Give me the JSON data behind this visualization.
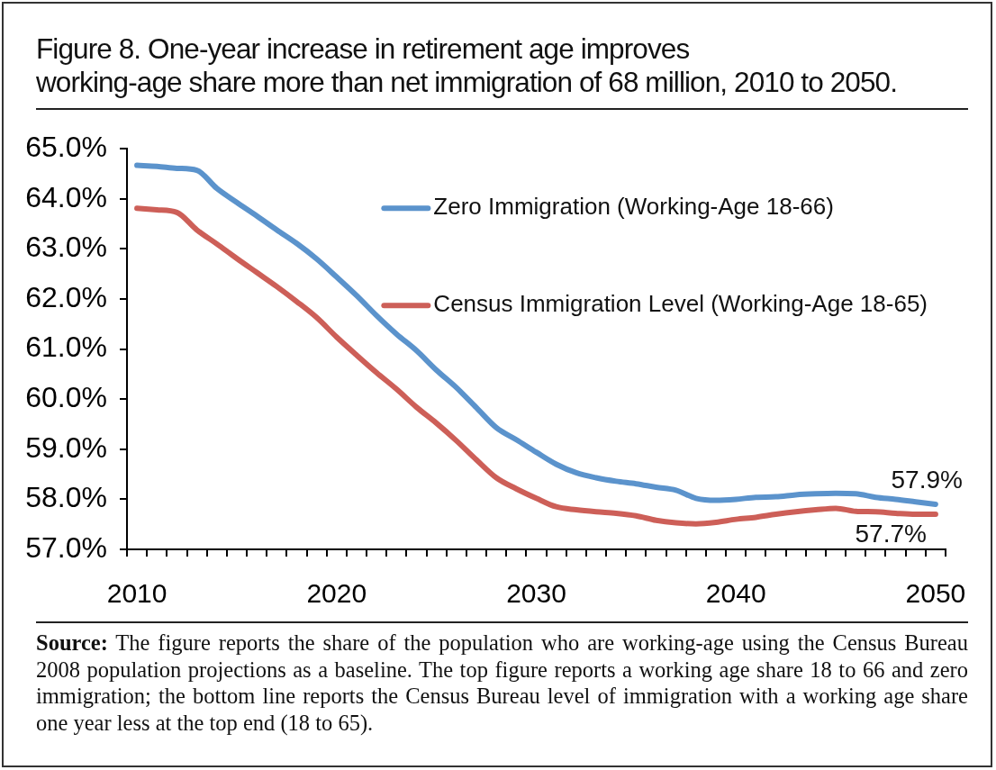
{
  "chart_data": {
    "type": "line",
    "title": "Figure 8. One-year increase in retirement age improves\nworking-age share more than net immigration of 68 million, 2010 to 2050.",
    "categories": [
      "2010",
      null,
      null,
      null,
      null,
      null,
      null,
      null,
      null,
      null,
      "2020",
      null,
      null,
      null,
      null,
      null,
      null,
      null,
      null,
      null,
      "2030",
      null,
      null,
      null,
      null,
      null,
      null,
      null,
      null,
      null,
      "2040",
      null,
      null,
      null,
      null,
      null,
      null,
      null,
      null,
      null,
      "2050"
    ],
    "series": [
      {
        "name": "Zero Immigration (Working-Age 18-66)",
        "color": "#5b93cc",
        "values": [
          64.67,
          64.65,
          64.61,
          64.57,
          64.21,
          63.93,
          63.66,
          63.38,
          63.11,
          62.8,
          62.44,
          62.07,
          61.67,
          61.3,
          60.97,
          60.58,
          60.23,
          59.83,
          59.43,
          59.19,
          58.94,
          58.7,
          58.53,
          58.43,
          58.36,
          58.31,
          58.24,
          58.18,
          58.02,
          57.98,
          58.0,
          58.04,
          58.05,
          58.09,
          58.11,
          58.12,
          58.11,
          58.04,
          58.0,
          57.95,
          57.9
        ],
        "value_labels": [
          null,
          null,
          null,
          null,
          null,
          null,
          null,
          null,
          null,
          null,
          null,
          null,
          null,
          null,
          null,
          null,
          null,
          null,
          null,
          null,
          null,
          null,
          null,
          null,
          null,
          null,
          null,
          null,
          null,
          null,
          null,
          null,
          null,
          null,
          null,
          null,
          null,
          null,
          null,
          null,
          "57.9%"
        ]
      },
      {
        "name": "Census Immigration Level (Working-Age 18-65)",
        "color": "#cd5f58",
        "values": [
          63.81,
          63.78,
          63.73,
          63.38,
          63.1,
          62.81,
          62.53,
          62.25,
          61.95,
          61.63,
          61.24,
          60.88,
          60.53,
          60.2,
          59.84,
          59.52,
          59.17,
          58.79,
          58.43,
          58.21,
          58.02,
          57.85,
          57.79,
          57.75,
          57.72,
          57.67,
          57.58,
          57.53,
          57.51,
          57.54,
          57.6,
          57.64,
          57.7,
          57.75,
          57.79,
          57.82,
          57.76,
          57.75,
          57.72,
          57.7,
          57.7
        ],
        "value_labels": [
          null,
          null,
          null,
          null,
          null,
          null,
          null,
          null,
          null,
          null,
          null,
          null,
          null,
          null,
          null,
          null,
          null,
          null,
          null,
          null,
          null,
          null,
          null,
          null,
          null,
          null,
          null,
          null,
          null,
          null,
          null,
          null,
          null,
          null,
          null,
          null,
          null,
          null,
          null,
          null,
          "57.7%"
        ]
      }
    ],
    "ylim": [
      57,
      65
    ],
    "yticks": [
      {
        "value": 57,
        "label": "57.0%"
      },
      {
        "value": 58,
        "label": "58.0%"
      },
      {
        "value": 59,
        "label": "59.0%"
      },
      {
        "value": 60,
        "label": "60.0%"
      },
      {
        "value": 61,
        "label": "61.0%"
      },
      {
        "value": 62,
        "label": "62.0%"
      },
      {
        "value": 63,
        "label": "63.0%"
      },
      {
        "value": 64,
        "label": "64.0%"
      },
      {
        "value": 65,
        "label": "65.0%"
      }
    ],
    "legend": "top right",
    "annotations": [
      "Source: The figure reports the share of the population who are working-age using the Census Bureau 2008 population projections as a baseline. The top figure reports a working age share 18 to 66 and zero immigration; the bottom line reports the  Census Bureau level of immigration with a working age share one year less at the top end (18 to 65)."
    ]
  }
}
